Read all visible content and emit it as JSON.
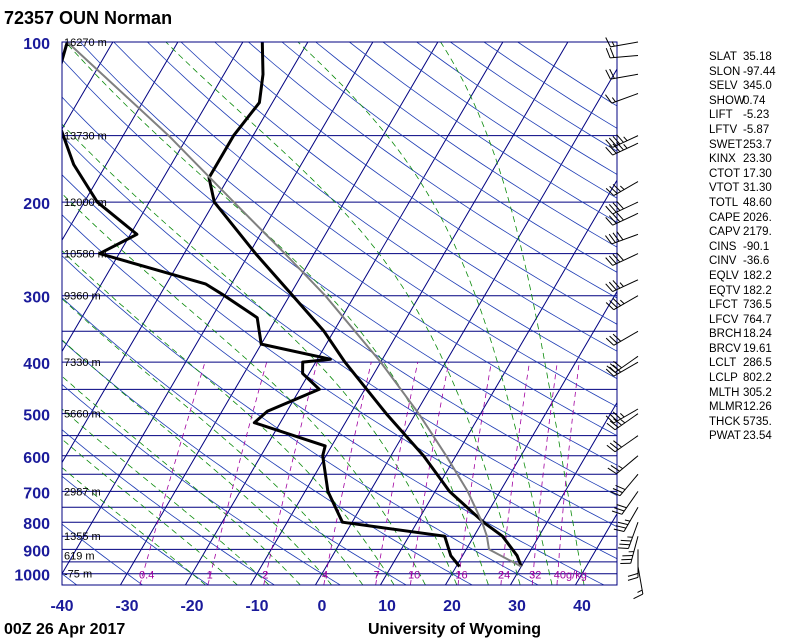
{
  "chart_data": {
    "type": "line",
    "title": "72357 OUN Norman",
    "footer_left": "00Z 26 Apr 2017",
    "footer_right": "University of Wyoming",
    "x_axis": {
      "ticks": [
        "-40",
        "-30",
        "-20",
        "-10",
        "0",
        "10",
        "20",
        "30",
        "40"
      ],
      "tick_values": [
        -40,
        -30,
        -20,
        -10,
        0,
        10,
        20,
        30,
        40
      ],
      "range": [
        -40,
        45
      ]
    },
    "y_axis": {
      "scale": "log",
      "ticks": [
        "100",
        "200",
        "300",
        "400",
        "500",
        "600",
        "700",
        "800",
        "900",
        "1000"
      ],
      "tick_values": [
        100,
        200,
        300,
        400,
        500,
        600,
        700,
        800,
        900,
        1000
      ],
      "range": [
        1050,
        100
      ]
    },
    "height_labels": [
      {
        "p": 100,
        "label": "16270 m"
      },
      {
        "p": 150,
        "label": "13730 m"
      },
      {
        "p": 200,
        "label": "12000 m"
      },
      {
        "p": 250,
        "label": "10580 m"
      },
      {
        "p": 300,
        "label": "9360 m"
      },
      {
        "p": 400,
        "label": "7330 m"
      },
      {
        "p": 500,
        "label": "5660 m"
      },
      {
        "p": 700,
        "label": "2987 m"
      },
      {
        "p": 850,
        "label": "1355 m"
      },
      {
        "p": 925,
        "label": "619 m"
      },
      {
        "p": 1000,
        "label": "-75 m"
      }
    ],
    "mixing_ratio_labels": [
      "0.4",
      "1",
      "2",
      "4",
      "7",
      "10",
      "16",
      "24",
      "32",
      "40g/kg"
    ],
    "mixing_ratio_values": [
      0.4,
      1,
      2,
      4,
      7,
      10,
      16,
      24,
      32,
      40
    ],
    "series": [
      {
        "name": "temperature",
        "color": "#000000",
        "points": [
          {
            "p": 969,
            "t": 30.0
          },
          {
            "p": 925,
            "t": 28.4
          },
          {
            "p": 850,
            "t": 24.4
          },
          {
            "p": 800,
            "t": 20.2
          },
          {
            "p": 700,
            "t": 12.2
          },
          {
            "p": 600,
            "t": 5.0
          },
          {
            "p": 500,
            "t": -4.5
          },
          {
            "p": 400,
            "t": -15.5
          },
          {
            "p": 350,
            "t": -21.5
          },
          {
            "p": 300,
            "t": -29.5
          },
          {
            "p": 250,
            "t": -39.0
          },
          {
            "p": 200,
            "t": -50.0
          },
          {
            "p": 180,
            "t": -53.0
          },
          {
            "p": 150,
            "t": -53.0
          },
          {
            "p": 130,
            "t": -52.0
          },
          {
            "p": 115,
            "t": -54.0
          },
          {
            "p": 100,
            "t": -57.0
          }
        ]
      },
      {
        "name": "dewpoint",
        "color": "#000000",
        "points": [
          {
            "p": 969,
            "t": 20.5
          },
          {
            "p": 925,
            "t": 18.2
          },
          {
            "p": 850,
            "t": 15.5
          },
          {
            "p": 800,
            "t": -1.5
          },
          {
            "p": 700,
            "t": -6.5
          },
          {
            "p": 600,
            "t": -10.5
          },
          {
            "p": 575,
            "t": -11.0
          },
          {
            "p": 520,
            "t": -24.0
          },
          {
            "p": 495,
            "t": -23.0
          },
          {
            "p": 450,
            "t": -17.0
          },
          {
            "p": 420,
            "t": -21.0
          },
          {
            "p": 400,
            "t": -22.0
          },
          {
            "p": 395,
            "t": -18.0
          },
          {
            "p": 370,
            "t": -30.0
          },
          {
            "p": 330,
            "t": -33.0
          },
          {
            "p": 300,
            "t": -40.0
          },
          {
            "p": 285,
            "t": -44.0
          },
          {
            "p": 250,
            "t": -63.0
          },
          {
            "p": 230,
            "t": -59.0
          },
          {
            "p": 200,
            "t": -68.0
          },
          {
            "p": 170,
            "t": -75.0
          },
          {
            "p": 130,
            "t": -84.0
          },
          {
            "p": 120,
            "t": -86.0
          },
          {
            "p": 110,
            "t": -86.0
          },
          {
            "p": 100,
            "t": -87.0
          }
        ]
      },
      {
        "name": "parcel",
        "color": "#808080",
        "points": [
          {
            "p": 969,
            "t": 30.0
          },
          {
            "p": 900,
            "t": 23.5
          },
          {
            "p": 850,
            "t": 22.0
          },
          {
            "p": 800,
            "t": 20.0
          },
          {
            "p": 700,
            "t": 15.0
          },
          {
            "p": 600,
            "t": 8.5
          },
          {
            "p": 500,
            "t": 0.5
          },
          {
            "p": 400,
            "t": -10.0
          },
          {
            "p": 300,
            "t": -24.5
          },
          {
            "p": 250,
            "t": -34.5
          },
          {
            "p": 200,
            "t": -47.0
          },
          {
            "p": 150,
            "t": -63.0
          },
          {
            "p": 100,
            "t": -87.0
          }
        ]
      }
    ],
    "wind_barbs": [
      {
        "p": 100,
        "spd": 15,
        "dir": 260
      },
      {
        "p": 106,
        "spd": 20,
        "dir": 265
      },
      {
        "p": 115,
        "spd": 20,
        "dir": 260
      },
      {
        "p": 125,
        "spd": 15,
        "dir": 250
      },
      {
        "p": 150,
        "spd": 45,
        "dir": 245
      },
      {
        "p": 155,
        "spd": 45,
        "dir": 245
      },
      {
        "p": 183,
        "spd": 35,
        "dir": 240
      },
      {
        "p": 200,
        "spd": 40,
        "dir": 245
      },
      {
        "p": 210,
        "spd": 40,
        "dir": 245
      },
      {
        "p": 230,
        "spd": 40,
        "dir": 250
      },
      {
        "p": 250,
        "spd": 40,
        "dir": 245
      },
      {
        "p": 280,
        "spd": 35,
        "dir": 245
      },
      {
        "p": 300,
        "spd": 35,
        "dir": 240
      },
      {
        "p": 350,
        "spd": 30,
        "dir": 240
      },
      {
        "p": 390,
        "spd": 30,
        "dir": 235
      },
      {
        "p": 400,
        "spd": 30,
        "dir": 240
      },
      {
        "p": 490,
        "spd": 35,
        "dir": 240
      },
      {
        "p": 500,
        "spd": 35,
        "dir": 235
      },
      {
        "p": 550,
        "spd": 30,
        "dir": 235
      },
      {
        "p": 600,
        "spd": 25,
        "dir": 230
      },
      {
        "p": 650,
        "spd": 30,
        "dir": 220
      },
      {
        "p": 700,
        "spd": 30,
        "dir": 215
      },
      {
        "p": 750,
        "spd": 35,
        "dir": 210
      },
      {
        "p": 800,
        "spd": 35,
        "dir": 200
      },
      {
        "p": 850,
        "spd": 35,
        "dir": 195
      },
      {
        "p": 900,
        "spd": 20,
        "dir": 180
      },
      {
        "p": 969,
        "spd": 15,
        "dir": 170
      }
    ],
    "indices": [
      {
        "name": "SLAT",
        "value": "35.18"
      },
      {
        "name": "SLON",
        "value": "-97.44"
      },
      {
        "name": "SELV",
        "value": "345.0"
      },
      {
        "name": "SHOW",
        "value": "0.74"
      },
      {
        "name": "LIFT",
        "value": "-5.23"
      },
      {
        "name": "LFTV",
        "value": "-5.87"
      },
      {
        "name": "SWET",
        "value": "253.7"
      },
      {
        "name": "KINX",
        "value": "23.30"
      },
      {
        "name": "CTOT",
        "value": "17.30"
      },
      {
        "name": "VTOT",
        "value": "31.30"
      },
      {
        "name": "TOTL",
        "value": "48.60"
      },
      {
        "name": "CAPE",
        "value": "2026."
      },
      {
        "name": "CAPV",
        "value": "2179."
      },
      {
        "name": "CINS",
        "value": "-90.1"
      },
      {
        "name": "CINV",
        "value": "-36.6"
      },
      {
        "name": "EQLV",
        "value": "182.2"
      },
      {
        "name": "EQTV",
        "value": "182.2"
      },
      {
        "name": "LFCT",
        "value": "736.5"
      },
      {
        "name": "LFCV",
        "value": "764.7"
      },
      {
        "name": "BRCH",
        "value": "18.24"
      },
      {
        "name": "BRCV",
        "value": "19.61"
      },
      {
        "name": "LCLT",
        "value": "286.5"
      },
      {
        "name": "LCLP",
        "value": "802.2"
      },
      {
        "name": "MLTH",
        "value": "305.2"
      },
      {
        "name": "MLMR",
        "value": "12.26"
      },
      {
        "name": "THCK",
        "value": "5735."
      },
      {
        "name": "PWAT",
        "value": "23.54"
      }
    ],
    "colors": {
      "isobar": "#000080",
      "isotherm": "#000080",
      "dry_adiabat": "#1e3cb4",
      "moist_adiabat": "#0a8a0a",
      "mixing_ratio": "#a000a0",
      "axis_text": "#1a1a9a"
    },
    "grid": true
  }
}
